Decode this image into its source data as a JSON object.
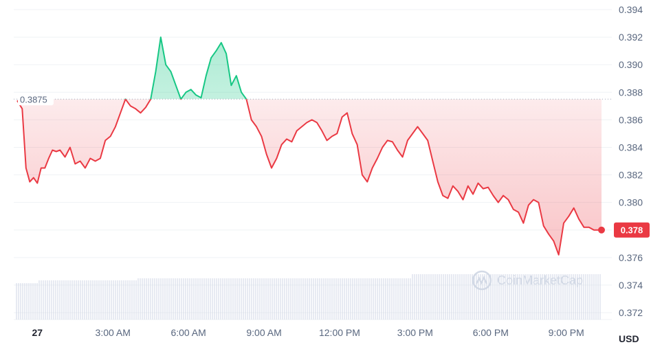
{
  "chart_data": {
    "type": "line",
    "title": "",
    "currency": "USD",
    "reference_price": 0.3875,
    "reference_label": "0.3875",
    "last_price_label": "0.378",
    "watermark": "CoinMarketCap",
    "y_range": [
      0.372,
      0.394
    ],
    "y_ticks": [
      0.394,
      0.392,
      0.39,
      0.388,
      0.386,
      0.384,
      0.382,
      0.38,
      0.378,
      0.376,
      0.374,
      0.372
    ],
    "y_tick_labels": [
      "0.394",
      "0.392",
      "0.390",
      "0.388",
      "0.386",
      "0.384",
      "0.382",
      "0.380",
      "",
      "0.376",
      "0.374",
      "0.372"
    ],
    "x_range_hours": [
      -0.8,
      22.4
    ],
    "x_ticks": [
      {
        "hour": 0,
        "label": "27",
        "bold": true
      },
      {
        "hour": 3,
        "label": "3:00 AM"
      },
      {
        "hour": 6,
        "label": "6:00 AM"
      },
      {
        "hour": 9,
        "label": "9:00 AM"
      },
      {
        "hour": 12,
        "label": "12:00 PM"
      },
      {
        "hour": 15,
        "label": "3:00 PM"
      },
      {
        "hour": 18,
        "label": "6:00 PM"
      },
      {
        "hour": 21,
        "label": "9:00 PM"
      }
    ],
    "grid": true,
    "colors": {
      "up": "#16c784",
      "down": "#ea3943",
      "grid": "#eff2f5",
      "axis_text": "#58667e",
      "volume": "#cfd6e4"
    },
    "series": [
      {
        "x": [
          -0.8,
          -0.6,
          -0.45,
          -0.3,
          -0.15,
          0.0,
          0.15,
          0.3,
          0.45,
          0.6,
          0.75,
          0.9,
          1.1,
          1.3,
          1.5,
          1.7,
          1.9,
          2.1,
          2.3,
          2.5,
          2.7,
          2.9,
          3.1,
          3.3,
          3.5,
          3.7,
          3.9,
          4.1,
          4.3,
          4.5,
          4.7,
          4.9,
          5.1,
          5.3,
          5.5,
          5.7,
          5.9,
          6.1,
          6.3,
          6.5,
          6.7,
          6.9,
          7.1,
          7.3,
          7.5,
          7.7,
          7.9,
          8.1,
          8.3,
          8.5,
          8.7,
          8.9,
          9.1,
          9.3,
          9.5,
          9.7,
          9.9,
          10.1,
          10.3,
          10.5,
          10.7,
          10.9,
          11.1,
          11.3,
          11.5,
          11.7,
          11.9,
          12.1,
          12.3,
          12.5,
          12.7,
          12.9,
          13.1,
          13.3,
          13.5,
          13.7,
          13.9,
          14.1,
          14.3,
          14.5,
          14.7,
          14.9,
          15.1,
          15.3,
          15.5,
          15.7,
          15.9,
          16.1,
          16.3,
          16.5,
          16.7,
          16.9,
          17.1,
          17.3,
          17.5,
          17.7,
          17.9,
          18.1,
          18.3,
          18.5,
          18.7,
          18.9,
          19.1,
          19.3,
          19.5,
          19.7,
          19.9,
          20.1,
          20.3,
          20.5,
          20.7,
          20.9,
          21.1,
          21.3,
          21.5,
          21.7,
          21.9,
          22.1,
          22.3,
          22.4
        ],
        "y": [
          0.3874,
          0.3868,
          0.3825,
          0.3815,
          0.3818,
          0.3814,
          0.3825,
          0.3825,
          0.3832,
          0.3838,
          0.3837,
          0.3838,
          0.3833,
          0.384,
          0.3828,
          0.383,
          0.3825,
          0.3832,
          0.383,
          0.3832,
          0.3845,
          0.3848,
          0.3855,
          0.3865,
          0.3875,
          0.387,
          0.3868,
          0.3865,
          0.3869,
          0.3875,
          0.3895,
          0.392,
          0.39,
          0.3895,
          0.3885,
          0.3875,
          0.388,
          0.3882,
          0.3878,
          0.3876,
          0.3892,
          0.3905,
          0.391,
          0.3916,
          0.3908,
          0.3885,
          0.3892,
          0.388,
          0.3875,
          0.386,
          0.3855,
          0.3848,
          0.3835,
          0.3825,
          0.3832,
          0.3842,
          0.3846,
          0.3844,
          0.3852,
          0.3855,
          0.3858,
          0.386,
          0.3858,
          0.3852,
          0.3845,
          0.3848,
          0.385,
          0.3862,
          0.3865,
          0.385,
          0.3842,
          0.382,
          0.3815,
          0.3825,
          0.3832,
          0.384,
          0.3845,
          0.3844,
          0.3838,
          0.3833,
          0.3845,
          0.385,
          0.3855,
          0.385,
          0.3845,
          0.383,
          0.3815,
          0.3805,
          0.3803,
          0.3812,
          0.3808,
          0.3802,
          0.3812,
          0.3806,
          0.3814,
          0.381,
          0.3811,
          0.3805,
          0.38,
          0.3805,
          0.3802,
          0.3795,
          0.3793,
          0.3785,
          0.3798,
          0.3802,
          0.38,
          0.3783,
          0.3777,
          0.3772,
          0.3762,
          0.3785,
          0.379,
          0.3796,
          0.3788,
          0.3782,
          0.3782,
          0.378,
          0.378,
          0.378
        ]
      }
    ]
  }
}
